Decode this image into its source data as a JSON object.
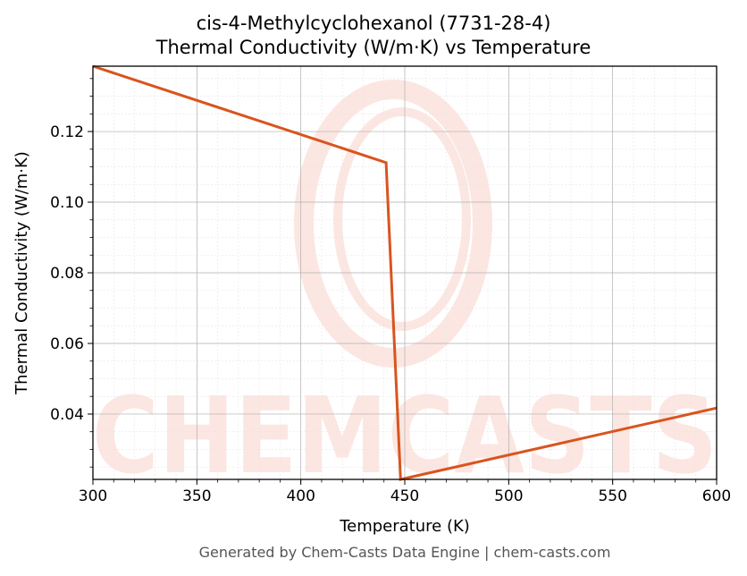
{
  "chart_data": {
    "type": "line",
    "title_lines": [
      "cis-4-Methylcyclohexanol (7731-28-4)",
      "Thermal Conductivity (W/m·K) vs Temperature"
    ],
    "xlabel": "Temperature (K)",
    "ylabel": "Thermal Conductivity (W/m·K)",
    "xlim": [
      300,
      600
    ],
    "ylim": [
      0.0215,
      0.1385
    ],
    "xticks": [
      300,
      350,
      400,
      450,
      500,
      550,
      600
    ],
    "yticks": [
      0.04,
      0.06,
      0.08,
      0.1,
      0.12
    ],
    "ytick_labels": [
      "0.04",
      "0.06",
      "0.08",
      "0.10",
      "0.12"
    ],
    "grid": true,
    "series": [
      {
        "color": "#d9541e",
        "x": [
          300,
          441,
          448,
          600
        ],
        "y": [
          0.1385,
          0.1112,
          0.0215,
          0.0417
        ]
      }
    ]
  },
  "watermark": "CHEMCASTS",
  "footer": "Generated by Chem-Casts Data Engine | chem-casts.com"
}
